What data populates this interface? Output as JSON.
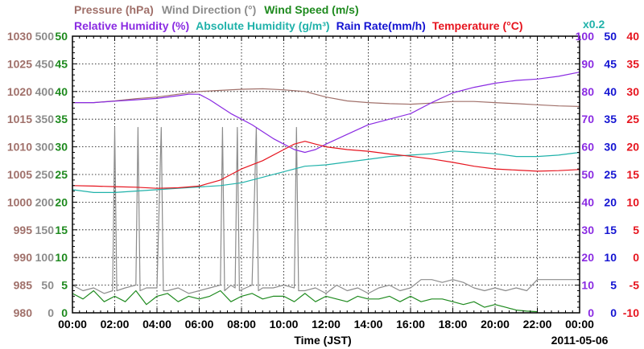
{
  "chart_data": {
    "type": "line",
    "date_label": "2011-05-06",
    "xlabel": "Time (JST)",
    "x_ticks": [
      "00:00",
      "02:00",
      "04:00",
      "06:00",
      "08:00",
      "10:00",
      "12:00",
      "14:00",
      "16:00",
      "18:00",
      "20:00",
      "22:00",
      "00:00"
    ],
    "legend": {
      "row1": [
        {
          "text": "Pressure (hPa)",
          "color": "#a0706a"
        },
        {
          "text": "Wind Direction (°)",
          "color": "#8c8c8c"
        },
        {
          "text": "Wind Speed (m/s)",
          "color": "#1e8a1e"
        }
      ],
      "row2": [
        {
          "text": "Relative Humidity (%)",
          "color": "#8a2be2"
        },
        {
          "text": "Absolute Humidity (g/m³)",
          "color": "#20b2aa"
        },
        {
          "text": "Rain Rate(mm/h)",
          "color": "#1414d2"
        },
        {
          "text": "Temperature (°C)",
          "color": "#e6141e"
        }
      ],
      "multiplier": {
        "text": "x0.2",
        "color": "#20b2aa"
      }
    },
    "y_axes": [
      {
        "name": "pressure",
        "color": "#a0706a",
        "range": [
          980,
          1030
        ],
        "ticks": [
          "980",
          "985",
          "990",
          "995",
          "1000",
          "1005",
          "1010",
          "1015",
          "1020",
          "1025",
          "1030"
        ]
      },
      {
        "name": "wind_direction",
        "color": "#8c8c8c",
        "range": [
          0,
          500
        ],
        "ticks": [
          "0",
          "50",
          "100",
          "150",
          "200",
          "250",
          "300",
          "350",
          "400",
          "450",
          "500"
        ]
      },
      {
        "name": "wind_speed",
        "color": "#1e8a1e",
        "range": [
          0,
          50
        ],
        "ticks": [
          "0",
          "5",
          "10",
          "15",
          "20",
          "25",
          "30",
          "35",
          "40",
          "45",
          "50"
        ]
      },
      {
        "name": "humidity",
        "color": "#8a2be2",
        "range": [
          0,
          100
        ],
        "ticks": [
          "0",
          "10",
          "20",
          "30",
          "40",
          "50",
          "60",
          "70",
          "80",
          "90",
          "100"
        ]
      },
      {
        "name": "rain_rate",
        "color": "#1414d2",
        "range": [
          0,
          50
        ],
        "ticks": [
          "0",
          "5",
          "10",
          "15",
          "20",
          "25",
          "30",
          "35",
          "40",
          "45",
          "50"
        ]
      },
      {
        "name": "temperature",
        "color": "#e6141e",
        "range": [
          -10,
          40
        ],
        "ticks": [
          "-10",
          "-5",
          "0",
          "5",
          "10",
          "15",
          "20",
          "25",
          "30",
          "35",
          "40"
        ]
      }
    ],
    "xlim_hours": [
      0,
      24
    ],
    "grid": true,
    "series": [
      {
        "name": "Pressure (hPa)",
        "axis": "pressure",
        "color": "#a0706a",
        "x": [
          0,
          1,
          2,
          3,
          4,
          5,
          6,
          7,
          8,
          9,
          10,
          11,
          12,
          13,
          14,
          15,
          16,
          17,
          18,
          19,
          20,
          21,
          22,
          23,
          24
        ],
        "y": [
          1018,
          1018,
          1018.3,
          1018.7,
          1019,
          1019.5,
          1020,
          1020.2,
          1020.4,
          1020.5,
          1020.3,
          1020,
          1019,
          1018.3,
          1018,
          1017.8,
          1017.7,
          1017.9,
          1018.2,
          1018.2,
          1018,
          1017.8,
          1017.6,
          1017.4,
          1017.3
        ]
      },
      {
        "name": "Relative Humidity (%)",
        "axis": "humidity",
        "color": "#8a2be2",
        "x": [
          0,
          1,
          2,
          3,
          4,
          5,
          5.5,
          6,
          6.5,
          7,
          7.5,
          8,
          8.5,
          9,
          9.5,
          10,
          10.5,
          11,
          11.5,
          12,
          13,
          14,
          15,
          16,
          17,
          18,
          19,
          20,
          21,
          22,
          23,
          24
        ],
        "y": [
          76,
          76,
          76.5,
          77,
          77.5,
          78.5,
          79,
          79,
          77,
          74.5,
          72,
          70,
          68,
          65.5,
          63,
          61,
          59,
          58,
          59,
          61,
          64.5,
          68,
          70,
          72,
          76,
          79.5,
          81.5,
          83,
          84,
          84.5,
          85.5,
          87
        ]
      },
      {
        "name": "Absolute Humidity (g/m³)",
        "axis": "humidity",
        "color": "#20b2aa",
        "x": [
          0,
          1,
          2,
          3,
          4,
          5,
          6,
          7,
          8,
          9,
          10,
          11,
          12,
          13,
          14,
          15,
          16,
          17,
          18,
          19,
          20,
          21,
          22,
          23,
          24
        ],
        "y": [
          44.5,
          43.5,
          43.5,
          44,
          44.5,
          45,
          45.5,
          46,
          47,
          49,
          51,
          53,
          53.5,
          54.5,
          55.5,
          56.5,
          57,
          57.5,
          58.5,
          58,
          57.5,
          56.5,
          56.5,
          57,
          58
        ]
      },
      {
        "name": "Temperature (°C)",
        "axis": "temperature",
        "color": "#e6141e",
        "x": [
          0,
          1,
          2,
          3,
          4,
          5,
          6,
          7,
          8,
          9,
          10,
          10.5,
          11,
          11.5,
          12,
          13,
          14,
          15,
          16,
          17,
          18,
          19,
          20,
          21,
          22,
          23,
          24
        ],
        "y": [
          13,
          12.9,
          12.8,
          12.7,
          12.5,
          12.6,
          12.9,
          14,
          16,
          17.5,
          19.5,
          20.5,
          21,
          20.5,
          20,
          19.5,
          19.2,
          18.7,
          18.3,
          17.8,
          17.2,
          16.5,
          16,
          15.8,
          15.6,
          15.7,
          15.9
        ]
      },
      {
        "name": "Wind Speed (m/s)",
        "axis": "wind_speed",
        "color": "#1e8a1e",
        "x": [
          0,
          0.5,
          1,
          1.5,
          2,
          2.5,
          3,
          3.5,
          4,
          4.5,
          5,
          5.5,
          6,
          6.5,
          7,
          7.5,
          8,
          8.5,
          9,
          9.5,
          10,
          10.5,
          11,
          11.5,
          12,
          12.5,
          13,
          13.5,
          14,
          14.5,
          15,
          15.5,
          16,
          16.5,
          17,
          17.5,
          18,
          18.5,
          19,
          19.5,
          20,
          20.5,
          21,
          21.5,
          22
        ],
        "y": [
          3.5,
          2.5,
          4,
          2,
          3,
          2,
          4,
          1.5,
          3,
          3.5,
          2,
          3,
          2.5,
          3,
          4,
          2,
          3,
          3.5,
          2.5,
          3,
          3,
          2,
          3.5,
          2,
          3,
          2.5,
          2,
          3,
          2.5,
          2.5,
          3,
          2,
          3,
          2,
          2.5,
          2.5,
          2,
          1.5,
          2,
          1,
          1.5,
          1,
          0.5,
          0.3,
          0.2
        ]
      },
      {
        "name": "Wind Direction (°)",
        "axis": "wind_direction",
        "color": "#8c8c8c",
        "x": [
          0,
          0.5,
          1,
          1.5,
          1.9,
          2,
          2.1,
          2.5,
          3,
          3.1,
          3.2,
          3.5,
          4,
          4.2,
          4.3,
          4.5,
          5,
          5.5,
          6,
          6.5,
          7,
          7.1,
          7.2,
          7.5,
          7.7,
          7.8,
          7.9,
          8.2,
          8.5,
          8.7,
          8.8,
          9,
          9.5,
          10,
          10.5,
          10.6,
          10.7,
          11,
          11.5,
          12,
          12.5,
          13,
          13.5,
          14,
          14.5,
          15,
          15.5,
          16,
          16.5,
          17,
          17.5,
          18,
          18.5,
          19,
          19.5,
          20,
          20.5,
          21,
          21.5,
          22,
          23,
          24
        ],
        "y": [
          50,
          40,
          45,
          35,
          40,
          335,
          40,
          45,
          50,
          335,
          40,
          45,
          45,
          335,
          40,
          40,
          45,
          35,
          40,
          45,
          50,
          335,
          40,
          50,
          45,
          335,
          40,
          45,
          50,
          335,
          40,
          45,
          45,
          50,
          45,
          335,
          40,
          40,
          45,
          35,
          50,
          40,
          45,
          35,
          45,
          50,
          40,
          45,
          60,
          60,
          55,
          60,
          55,
          45,
          40,
          45,
          40,
          45,
          40,
          60,
          60,
          60
        ]
      }
    ]
  }
}
